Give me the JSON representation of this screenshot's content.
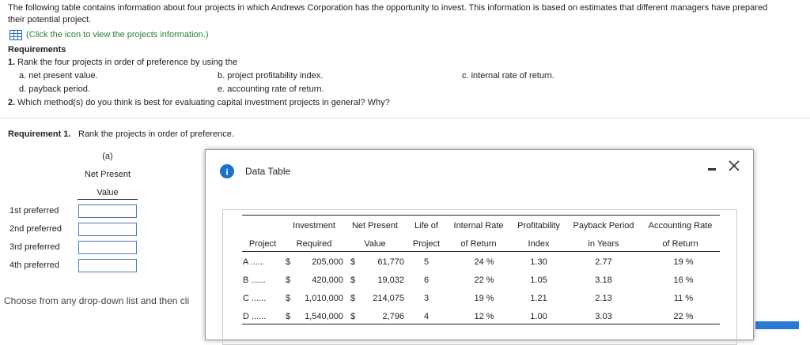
{
  "intro": {
    "lines": [
      "The following table contains information about four projects in which Andrews Corporation has the opportunity to invest. This information is based on estimates that different managers have prepared",
      "their potential project."
    ],
    "link": "(Click the icon to view the projects information.)"
  },
  "requirements": {
    "heading": "Requirements",
    "items": [
      {
        "number": "1.",
        "text": "Rank the four projects in order of preference by using the",
        "options": [
          "a. net present value.",
          "b. project profitability index.",
          "c. internal rate of return.",
          "d. payback period.",
          "e. accounting rate of return."
        ]
      },
      {
        "number": "2.",
        "text": "Which method(s) do you think is best for evaluating capital investment projects in general? Why?"
      }
    ]
  },
  "requirement1": {
    "label": "Requirement 1.",
    "text": "Rank the projects in order of preference.",
    "column_header": [
      "(a)",
      "Net Present",
      "Value"
    ],
    "rows": [
      "1st preferred",
      "2nd preferred",
      "3rd preferred",
      "4th preferred"
    ]
  },
  "instruction": "Choose from any drop-down list and then cli",
  "dialog": {
    "title": "Data Table",
    "table": {
      "header_top": [
        "Investment",
        "Net Present",
        "Life of",
        "Internal Rate",
        "Profitability",
        "Payback Period",
        "Accounting Rate"
      ],
      "header_bottom": [
        "Project",
        "Required",
        "Value",
        "Project",
        "of Return",
        "Index",
        "in Years",
        "of Return"
      ],
      "rows": [
        [
          "A ......",
          "$",
          "205,000",
          "$",
          "61,770",
          "5",
          "24 %",
          "1.30",
          "2.77",
          "19 %"
        ],
        [
          "B ......",
          "$",
          "420,000",
          "$",
          "19,032",
          "6",
          "22 %",
          "1.05",
          "3.18",
          "16 %"
        ],
        [
          "C ......",
          "$",
          "1,010,000",
          "$",
          "214,075",
          "3",
          "19 %",
          "1.21",
          "2.13",
          "11 %"
        ],
        [
          "D ......",
          "$",
          "1,540,000",
          "$",
          "2,796",
          "4",
          "12 %",
          "1.00",
          "3.03",
          "22 %"
        ]
      ]
    }
  }
}
